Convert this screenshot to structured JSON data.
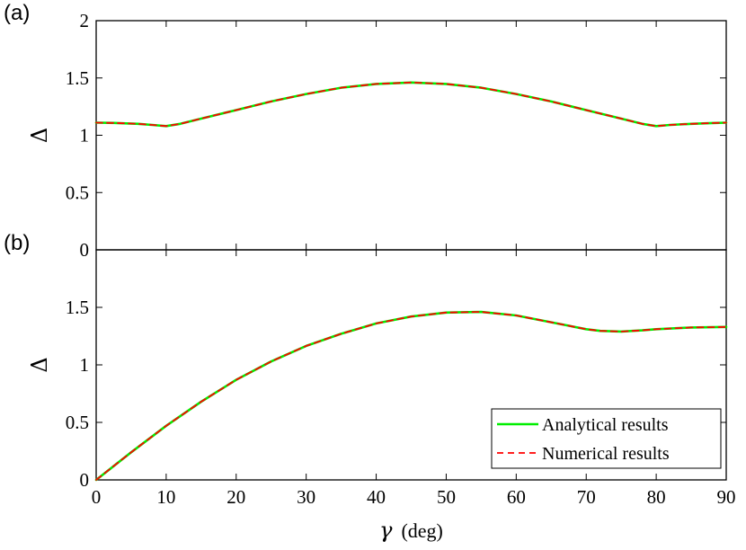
{
  "chart_data": [
    {
      "panel": "(a)",
      "type": "line",
      "xlabel": "",
      "ylabel": "Δ",
      "xlim": [
        0,
        90
      ],
      "ylim": [
        0,
        2
      ],
      "xticks": [
        0,
        10,
        20,
        30,
        40,
        50,
        60,
        70,
        80,
        90
      ],
      "yticks": [
        0,
        0.5,
        1,
        1.5,
        2
      ],
      "ytick_labels": [
        "0",
        "0.5",
        "1",
        "1.5",
        "2"
      ],
      "xtick_labels_shown": false,
      "grid": false,
      "series": [
        {
          "name": "Analytical results",
          "style": "solid",
          "color": "#00ee00",
          "x": [
            0,
            3,
            6,
            8,
            10,
            12,
            15,
            20,
            25,
            30,
            35,
            40,
            45,
            50,
            55,
            60,
            65,
            70,
            75,
            78,
            80,
            82,
            85,
            88,
            90
          ],
          "y": [
            1.11,
            1.107,
            1.1,
            1.09,
            1.08,
            1.1,
            1.145,
            1.22,
            1.295,
            1.36,
            1.415,
            1.448,
            1.46,
            1.448,
            1.415,
            1.36,
            1.295,
            1.22,
            1.145,
            1.1,
            1.08,
            1.09,
            1.1,
            1.107,
            1.11
          ]
        },
        {
          "name": "Numerical results",
          "style": "dashed",
          "color": "#ff0000",
          "x": [
            0,
            3,
            6,
            8,
            10,
            12,
            15,
            20,
            25,
            30,
            35,
            40,
            45,
            50,
            55,
            60,
            65,
            70,
            75,
            78,
            80,
            82,
            85,
            88,
            90
          ],
          "y": [
            1.11,
            1.107,
            1.1,
            1.09,
            1.08,
            1.1,
            1.145,
            1.22,
            1.295,
            1.36,
            1.415,
            1.448,
            1.46,
            1.448,
            1.415,
            1.36,
            1.295,
            1.22,
            1.145,
            1.1,
            1.08,
            1.09,
            1.1,
            1.107,
            1.11
          ]
        }
      ]
    },
    {
      "panel": "(b)",
      "type": "line",
      "xlabel": "γ (deg)",
      "xlabel_symbol": "γ",
      "xlabel_unit": "(deg)",
      "ylabel": "Δ",
      "xlim": [
        0,
        90
      ],
      "ylim": [
        0,
        2
      ],
      "xticks": [
        0,
        10,
        20,
        30,
        40,
        50,
        60,
        70,
        80,
        90
      ],
      "xtick_labels": [
        "0",
        "10",
        "20",
        "30",
        "40",
        "50",
        "60",
        "70",
        "80",
        "90"
      ],
      "yticks": [
        0,
        0.5,
        1,
        1.5
      ],
      "ytick_labels": [
        "0",
        "0.5",
        "1",
        "1.5"
      ],
      "grid": false,
      "legend": "bottom-right",
      "series": [
        {
          "name": "Analytical results",
          "style": "solid",
          "color": "#00ee00",
          "x": [
            0,
            5,
            10,
            15,
            20,
            25,
            30,
            35,
            40,
            45,
            50,
            55,
            60,
            65,
            70,
            72,
            75,
            78,
            80,
            85,
            90
          ],
          "y": [
            0,
            0.24,
            0.47,
            0.68,
            0.87,
            1.03,
            1.165,
            1.27,
            1.36,
            1.42,
            1.455,
            1.46,
            1.43,
            1.37,
            1.31,
            1.295,
            1.29,
            1.3,
            1.31,
            1.325,
            1.33
          ]
        },
        {
          "name": "Numerical results",
          "style": "dashed",
          "color": "#ff0000",
          "x": [
            0,
            5,
            10,
            15,
            20,
            25,
            30,
            35,
            40,
            45,
            50,
            55,
            60,
            65,
            70,
            72,
            75,
            78,
            80,
            85,
            90
          ],
          "y": [
            0,
            0.24,
            0.47,
            0.68,
            0.87,
            1.03,
            1.165,
            1.27,
            1.36,
            1.42,
            1.455,
            1.46,
            1.43,
            1.37,
            1.31,
            1.295,
            1.29,
            1.3,
            1.31,
            1.325,
            1.33
          ]
        }
      ]
    }
  ]
}
